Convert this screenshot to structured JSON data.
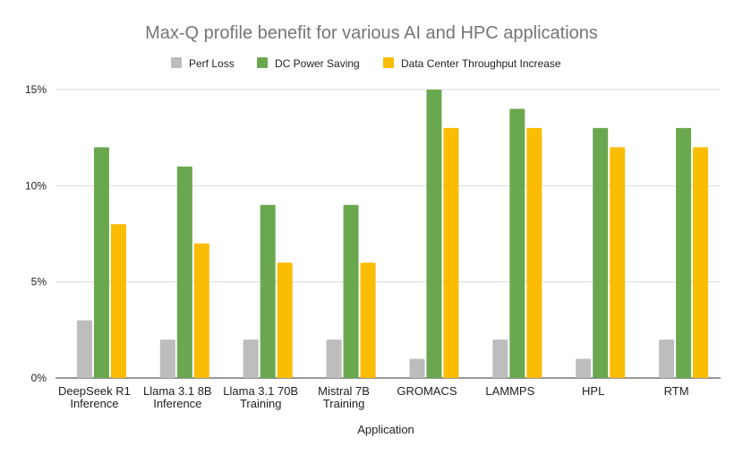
{
  "chart_data": {
    "type": "bar",
    "title": "Max-Q profile benefit for various AI and HPC applications",
    "xlabel": "Application",
    "ylabel": "",
    "ylim": [
      0,
      15
    ],
    "yticks": [
      "0%",
      "5%",
      "10%",
      "15%"
    ],
    "ytick_values": [
      0,
      5,
      10,
      15
    ],
    "grid": true,
    "legend_placement": "top",
    "categories": [
      [
        "DeepSeek R1",
        "Inference"
      ],
      [
        "Llama 3.1 8B",
        "Inference"
      ],
      [
        "Llama 3.1 70B",
        "Training"
      ],
      [
        "Mistral 7B",
        "Training"
      ],
      [
        "GROMACS"
      ],
      [
        "LAMMPS"
      ],
      [
        "HPL"
      ],
      [
        "RTM"
      ]
    ],
    "series": [
      {
        "name": "Perf Loss",
        "color": "#bdbdbd",
        "values": [
          3,
          2,
          2,
          2,
          1,
          2,
          1,
          2
        ]
      },
      {
        "name": "DC Power Saving",
        "color": "#6aa84f",
        "values": [
          12,
          11,
          9,
          9,
          15,
          14,
          13,
          13
        ]
      },
      {
        "name": "Data Center Throughput Increase",
        "color": "#fbbc04",
        "values": [
          8,
          7,
          6,
          6,
          13,
          13,
          12,
          12
        ]
      }
    ]
  }
}
